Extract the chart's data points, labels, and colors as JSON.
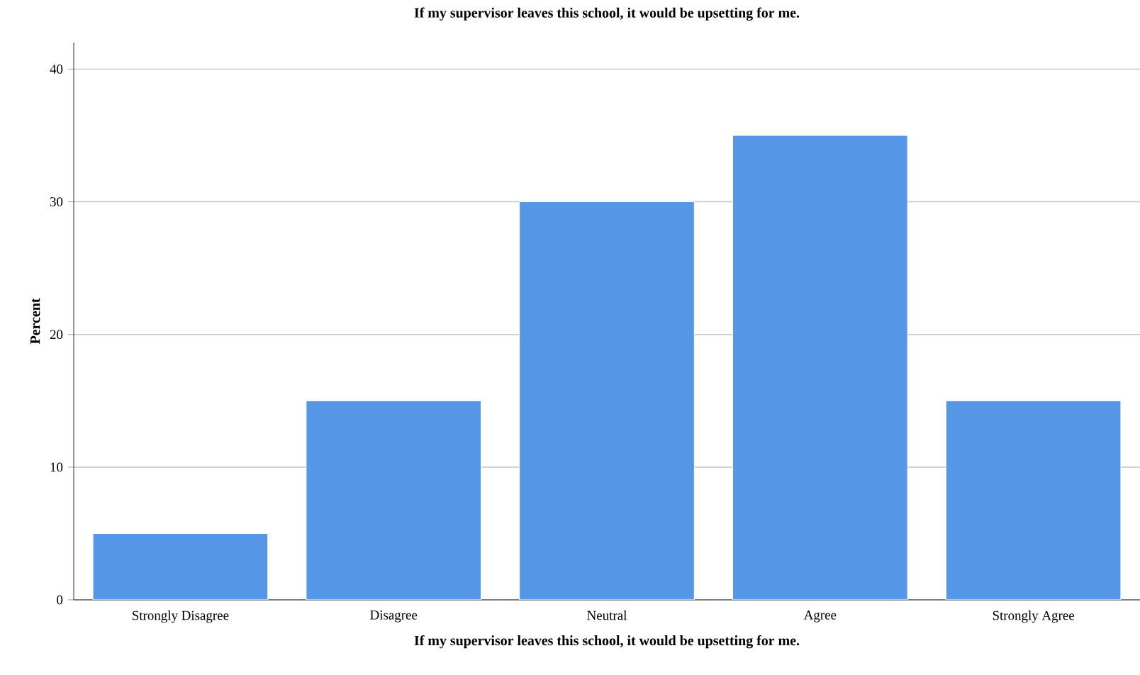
{
  "chart_data": {
    "type": "bar",
    "title": "If my supervisor leaves this school, it would be upsetting for me.",
    "xlabel": "If my supervisor leaves this school, it would be upsetting for me.",
    "ylabel": "Percent",
    "categories": [
      "Strongly Disagree",
      "Disagree",
      "Neutral",
      "Agree",
      "Strongly Agree"
    ],
    "values": [
      5,
      15,
      30,
      35,
      15
    ],
    "color": "#5596e6",
    "ylim": [
      0,
      42
    ],
    "yticks": [
      0,
      10,
      20,
      30,
      40
    ],
    "grid": "y"
  }
}
